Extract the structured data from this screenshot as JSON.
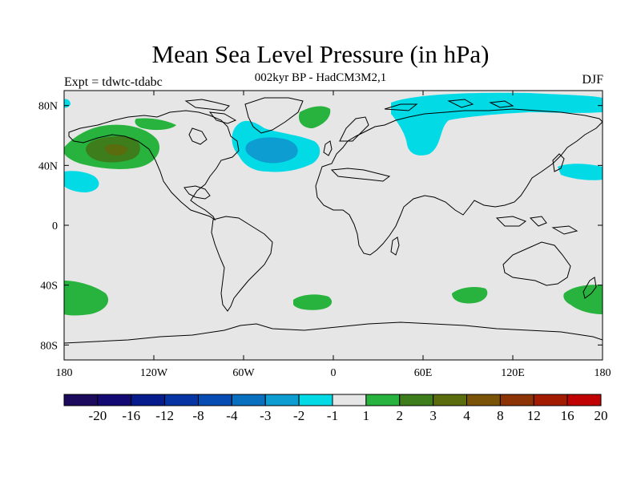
{
  "title": "Mean Sea Level Pressure (in hPa)",
  "subtitle": "002kyr BP - HadCM3M2,1",
  "experiment": "Expt = tdwtc-tdabc",
  "season": "DJF",
  "map": {
    "lon_range": [
      -180,
      180
    ],
    "lat_range": [
      -90,
      90
    ],
    "lon_ticks": [
      {
        "value": -180,
        "label": "180"
      },
      {
        "value": -120,
        "label": "120W"
      },
      {
        "value": -60,
        "label": "60W"
      },
      {
        "value": 0,
        "label": "0"
      },
      {
        "value": 60,
        "label": "60E"
      },
      {
        "value": 120,
        "label": "120E"
      },
      {
        "value": 180,
        "label": "180"
      }
    ],
    "lat_ticks": [
      {
        "value": 80,
        "label": "80N"
      },
      {
        "value": 40,
        "label": "40N"
      },
      {
        "value": 0,
        "label": "0"
      },
      {
        "value": -40,
        "label": "40S"
      },
      {
        "value": -80,
        "label": "80S"
      }
    ],
    "background_color": "#e6e6e6"
  },
  "colorbar": {
    "colors": [
      "#1c0a5c",
      "#130b73",
      "#061c8c",
      "#0634a3",
      "#074cb2",
      "#0870bf",
      "#0d9dd0",
      "#02dae6",
      "#e6e6e6",
      "#27b33d",
      "#3d7d1c",
      "#5a6c0d",
      "#7a5208",
      "#8c3405",
      "#a31c02",
      "#c10202"
    ],
    "labels": [
      "-20",
      "-16",
      "-12",
      "-8",
      "-4",
      "-3",
      "-2",
      "-1",
      "1",
      "2",
      "3",
      "4",
      "8",
      "12",
      "16",
      "20"
    ]
  }
}
